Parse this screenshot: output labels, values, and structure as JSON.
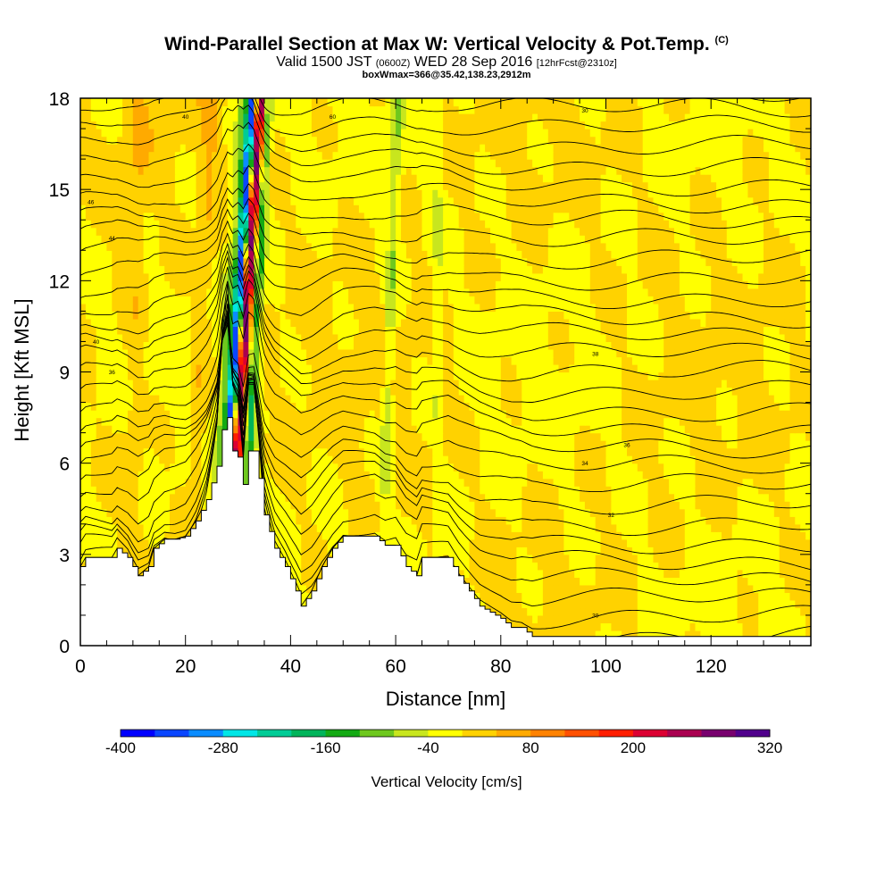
{
  "header": {
    "title": "Wind-Parallel Section at Max W: Vertical Velocity & Pot.Temp.",
    "title_mark": "(C)",
    "valid_prefix": "Valid 1500 JST",
    "valid_z": "(0600Z)",
    "valid_date": "WED 28 Sep 2016",
    "forecast": "[12hrFcst@2310z]",
    "box_info": "boxWmax=366@35.42,138.23,2912m"
  },
  "chart_data": {
    "type": "heatmap",
    "xlabel": "Distance [nm]",
    "ylabel": "Height [Kft MSL]",
    "xlim": [
      0,
      139
    ],
    "ylim": [
      0,
      18
    ],
    "x_ticks": [
      0,
      20,
      40,
      60,
      80,
      100,
      120
    ],
    "y_ticks": [
      0,
      3,
      6,
      9,
      12,
      15,
      18
    ],
    "colorbar": {
      "label": "Vertical Velocity [cm/s]",
      "tick_labels": [
        -400,
        -280,
        -160,
        -40,
        80,
        200,
        320
      ],
      "levels": [
        -400,
        -360,
        -320,
        -280,
        -240,
        -200,
        -160,
        -120,
        -80,
        -40,
        0,
        40,
        80,
        120,
        160,
        200,
        240,
        280,
        320
      ],
      "colors": [
        "#0000ff",
        "#0a46ff",
        "#0a8cff",
        "#00e6e6",
        "#00cc96",
        "#00b45a",
        "#14aa14",
        "#6ec81e",
        "#c8e61e",
        "#ffff00",
        "#ffd200",
        "#ffaa00",
        "#ff8200",
        "#ff5000",
        "#ff1e00",
        "#dc0032",
        "#aa0050",
        "#78006e",
        "#50008c"
      ]
    },
    "terrain_kft": [
      [
        0,
        2.6
      ],
      [
        1,
        2.9
      ],
      [
        3,
        2.9
      ],
      [
        6,
        2.9
      ],
      [
        7,
        3.2
      ],
      [
        9,
        2.9
      ],
      [
        11,
        2.3
      ],
      [
        13,
        2.6
      ],
      [
        14,
        3.2
      ],
      [
        16,
        3.5
      ],
      [
        18,
        3.5
      ],
      [
        20,
        3.6
      ],
      [
        22,
        4.1
      ],
      [
        24,
        4.8
      ],
      [
        26,
        5.9
      ],
      [
        27,
        7.1
      ],
      [
        28,
        7.5
      ],
      [
        29,
        6.4
      ],
      [
        30,
        6.2
      ],
      [
        31,
        5.3
      ],
      [
        32,
        6.4
      ],
      [
        33,
        6.4
      ],
      [
        34,
        5.5
      ],
      [
        35,
        4.3
      ],
      [
        37,
        3.2
      ],
      [
        39,
        2.6
      ],
      [
        41,
        1.8
      ],
      [
        42,
        1.3
      ],
      [
        44,
        1.8
      ],
      [
        46,
        2.6
      ],
      [
        48,
        3.2
      ],
      [
        50,
        3.6
      ],
      [
        52,
        3.6
      ],
      [
        56,
        3.6
      ],
      [
        58,
        3.3
      ],
      [
        60,
        3.3
      ],
      [
        62,
        2.6
      ],
      [
        64,
        2.3
      ],
      [
        65,
        2.9
      ],
      [
        67,
        2.9
      ],
      [
        70,
        2.9
      ],
      [
        72,
        2.3
      ],
      [
        74,
        1.8
      ],
      [
        76,
        1.3
      ],
      [
        78,
        1.1
      ],
      [
        80,
        0.9
      ],
      [
        82,
        0.6
      ],
      [
        84,
        0.6
      ],
      [
        86,
        0.3
      ],
      [
        90,
        0.3
      ],
      [
        139,
        0.3
      ]
    ],
    "theta_contour_labels": [
      {
        "value": "40",
        "x": 20,
        "y": 17.4
      },
      {
        "value": "60",
        "x": 48,
        "y": 17.4
      },
      {
        "value": "30",
        "x": 96,
        "y": 17.6
      },
      {
        "value": "46",
        "x": 2,
        "y": 14.6
      },
      {
        "value": "44",
        "x": 6,
        "y": 13.4
      },
      {
        "value": "40",
        "x": 3,
        "y": 10.0
      },
      {
        "value": "36",
        "x": 6,
        "y": 9.0
      },
      {
        "value": "38",
        "x": 98,
        "y": 9.6
      },
      {
        "value": "36",
        "x": 104,
        "y": 6.6
      },
      {
        "value": "34",
        "x": 96,
        "y": 6.0
      },
      {
        "value": "32",
        "x": 101,
        "y": 4.3
      },
      {
        "value": "30",
        "x": 98,
        "y": 1.0
      }
    ],
    "w_features": [
      {
        "x_base": 29.5,
        "lean": 4.8,
        "width": 1.1,
        "amp": 330
      },
      {
        "x_base": 28.2,
        "lean": 4.6,
        "width": 0.9,
        "amp": -380
      },
      {
        "x_base": 32.0,
        "lean": 3.6,
        "width": 1.0,
        "amp": -150
      },
      {
        "x_base": 26.5,
        "lean": 4.6,
        "width": 1.2,
        "amp": -90
      },
      {
        "x_base": 58.0,
        "lean": 2.5,
        "width": 1.0,
        "amp": -70
      },
      {
        "x_base": 68.0,
        "lean": 0.0,
        "width": 0.7,
        "amp": -50
      },
      {
        "x_base": 22.0,
        "lean": 3.0,
        "width": 1.5,
        "amp": 40
      },
      {
        "x_base": 10.0,
        "lean": 1.0,
        "width": 2.0,
        "amp": 30
      }
    ]
  }
}
